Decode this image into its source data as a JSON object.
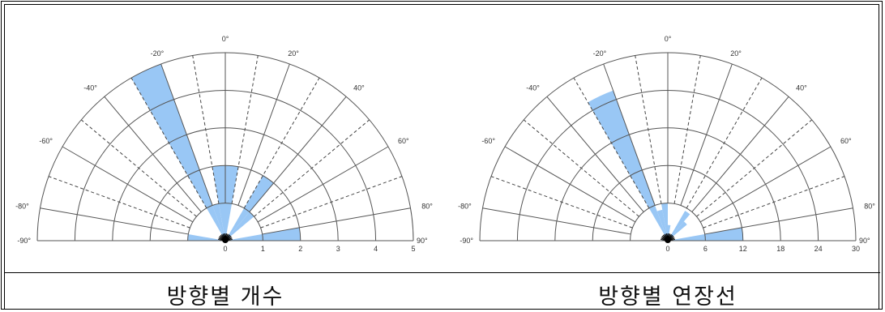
{
  "colors": {
    "fill": "#99c7f5",
    "grid": "#555555",
    "dash": "#444444",
    "center": "#000000"
  },
  "chart_data": [
    {
      "type": "polar-rose",
      "title": "방향별 개수",
      "angle_range": [
        -90,
        90
      ],
      "angle_labels": [
        "-90°",
        "-80°",
        "-60°",
        "-40°",
        "-20°",
        "0°",
        "20°",
        "40°",
        "60°",
        "80°",
        "90°"
      ],
      "radial_ticks": [
        "0",
        "1",
        "2",
        "3",
        "4",
        "5"
      ],
      "rmax": 5,
      "sector_width_deg": 10,
      "data": [
        {
          "angle": -85,
          "value": 1
        },
        {
          "angle": -25,
          "value": 5
        },
        {
          "angle": -15,
          "value": 1
        },
        {
          "angle": -5,
          "value": 2
        },
        {
          "angle": 5,
          "value": 2
        },
        {
          "angle": 35,
          "value": 2
        },
        {
          "angle": 45,
          "value": 1
        },
        {
          "angle": 85,
          "value": 2
        }
      ]
    },
    {
      "type": "polar-rose",
      "title": "방향별 연장선",
      "angle_range": [
        -90,
        90
      ],
      "angle_labels": [
        "-90°",
        "-80°",
        "-60°",
        "-40°",
        "-20°",
        "0°",
        "20°",
        "40°",
        "60°",
        "80°",
        "90°"
      ],
      "radial_ticks": [
        "0",
        "6",
        "12",
        "18",
        "24",
        "30"
      ],
      "rmax": 30,
      "sector_width_deg": 10,
      "data": [
        {
          "angle": -85,
          "value": 1
        },
        {
          "angle": -25,
          "value": 25.5
        },
        {
          "angle": -15,
          "value": 5
        },
        {
          "angle": -5,
          "value": 6
        },
        {
          "angle": 5,
          "value": 2.5
        },
        {
          "angle": 35,
          "value": 5.5
        },
        {
          "angle": 45,
          "value": 4
        },
        {
          "angle": 85,
          "value": 12
        }
      ]
    }
  ]
}
